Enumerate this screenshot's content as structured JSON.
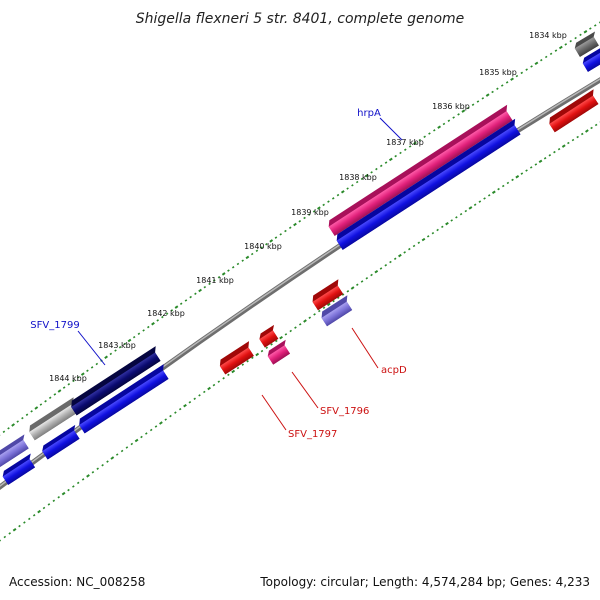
{
  "title": "Shigella flexneri 5 str. 8401, complete genome",
  "footer": {
    "accession": "Accession: NC_008258",
    "summary": "Topology: circular; Length: 4,574,284 bp; Genes: 4,233"
  },
  "ticks": [
    "1834 kbp",
    "1835 kbp",
    "1836 kbp",
    "1837 kbp",
    "1838 kbp",
    "1839 kbp",
    "1840 kbp",
    "1841 kbp",
    "1842 kbp",
    "1843 kbp",
    "1844 kbp"
  ],
  "labels": {
    "hrpA": "hrpA",
    "sfv1799": "SFV_1799",
    "acpD": "acpD",
    "sfv1796": "SFV_1796",
    "sfv1797": "SFV_1797"
  },
  "colors": {
    "backbone": "#8c8c8c",
    "tick_dots": "#2a8a2a",
    "forward_blue": "#1010e0",
    "pink": "#e0207a",
    "red": "#e01010",
    "lavender": "#7c72d8",
    "navy": "#0a0a70",
    "gray": "#8a8a8a",
    "label_blue": "#1010c8",
    "label_red": "#cc1111"
  }
}
